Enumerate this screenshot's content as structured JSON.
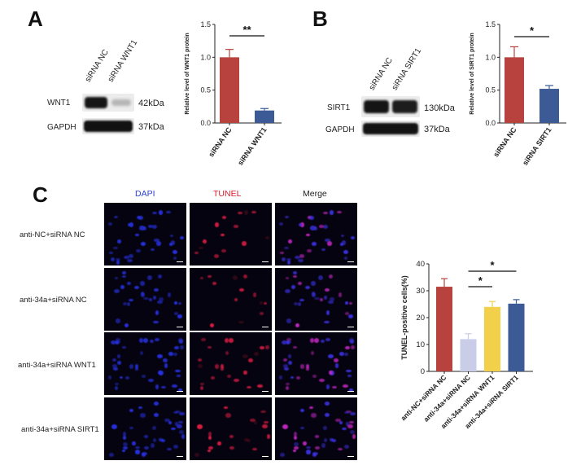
{
  "panels": {
    "a": "A",
    "b": "B",
    "c": "C"
  },
  "panel_a": {
    "lanes": [
      "siRNA NC",
      "siRNA WNT1"
    ],
    "rows": [
      {
        "label": "WNT1",
        "kda": "42kDa"
      },
      {
        "label": "GAPDH",
        "kda": "37kDa"
      }
    ]
  },
  "panel_b": {
    "lanes": [
      "siRNA NC",
      "siRNA SIRT1"
    ],
    "rows": [
      {
        "label": "SIRT1",
        "kda": "130kDa"
      },
      {
        "label": "GAPDH",
        "kda": "37kDa"
      }
    ]
  },
  "panel_c": {
    "columns": [
      "DAPI",
      "TUNEL",
      "Merge"
    ],
    "column_colors": [
      "#2b3fd6",
      "#d81b2e",
      "#222222"
    ],
    "rows": [
      "anti-NC+siRNA NC",
      "anti-34a+siRNA NC",
      "anti-34a+siRNA WNT1",
      "anti-34a+siRNA SIRT1"
    ]
  },
  "chart_data": [
    {
      "type": "bar",
      "categories": [
        "siRNA NC",
        "siRNA WNT1"
      ],
      "values": [
        1.0,
        0.19
      ],
      "errors": [
        0.12,
        0.03
      ],
      "colors": [
        "#b8433e",
        "#3b5a96"
      ],
      "ylabel": "Relative level of WNT1 protein",
      "ylim": [
        0,
        1.5
      ],
      "ticks": [
        "0.0",
        "0.5",
        "1.0",
        "1.5"
      ],
      "significance": [
        {
          "from": 0,
          "to": 1,
          "label": "**"
        }
      ]
    },
    {
      "type": "bar",
      "categories": [
        "siRNA NC",
        "siRNA SIRT1"
      ],
      "values": [
        1.0,
        0.52
      ],
      "errors": [
        0.16,
        0.05
      ],
      "colors": [
        "#b8433e",
        "#3b5a96"
      ],
      "ylabel": "Relative level of SIRT1 protein",
      "ylim": [
        0,
        1.5
      ],
      "ticks": [
        "0.0",
        "0.5",
        "1.0",
        "1.5"
      ],
      "significance": [
        {
          "from": 0,
          "to": 1,
          "label": "*"
        }
      ]
    },
    {
      "type": "bar",
      "categories": [
        "anti-NC+siRNA NC",
        "anti-34a+siRNA NC",
        "anti-34a+siRNA WNT1",
        "anti-34a+siRNA SIRT1"
      ],
      "values": [
        31.5,
        12.0,
        24.0,
        25.2
      ],
      "errors": [
        3.0,
        2.0,
        2.0,
        1.5
      ],
      "colors": [
        "#b8433e",
        "#c9cde8",
        "#f2d04a",
        "#3b5a96"
      ],
      "ylabel": "TUNEL-positive cells(%)",
      "ylim": [
        0,
        40
      ],
      "ticks": [
        "0",
        "10",
        "20",
        "30",
        "40"
      ],
      "significance": [
        {
          "from": 1,
          "to": 2,
          "label": "*"
        },
        {
          "from": 1,
          "to": 3,
          "label": "*"
        }
      ]
    }
  ]
}
